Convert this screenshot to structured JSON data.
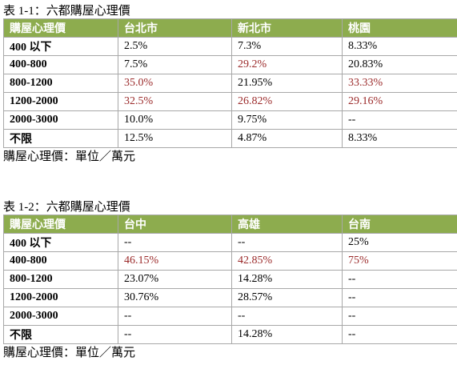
{
  "table1": {
    "caption": "表 1-1：六都購屋心理價",
    "headers": [
      "購屋心理價",
      "台北市",
      "新北市",
      "桃園"
    ],
    "rows": [
      {
        "label": "400 以下",
        "cells": [
          {
            "v": "2.5%",
            "red": false
          },
          {
            "v": "7.3%",
            "red": false
          },
          {
            "v": "8.33%",
            "red": false
          }
        ]
      },
      {
        "label": "400-800",
        "cells": [
          {
            "v": "7.5%",
            "red": false
          },
          {
            "v": "29.2%",
            "red": true
          },
          {
            "v": "20.83%",
            "red": false
          }
        ]
      },
      {
        "label": "800-1200",
        "cells": [
          {
            "v": "35.0%",
            "red": true
          },
          {
            "v": "21.95%",
            "red": false
          },
          {
            "v": "33.33%",
            "red": true
          }
        ]
      },
      {
        "label": "1200-2000",
        "cells": [
          {
            "v": "32.5%",
            "red": true
          },
          {
            "v": "26.82%",
            "red": true
          },
          {
            "v": "29.16%",
            "red": true
          }
        ]
      },
      {
        "label": "2000-3000",
        "cells": [
          {
            "v": "10.0%",
            "red": false
          },
          {
            "v": "9.75%",
            "red": false
          },
          {
            "v": "--",
            "red": false
          }
        ]
      },
      {
        "label": "不限",
        "cells": [
          {
            "v": "12.5%",
            "red": false
          },
          {
            "v": "4.87%",
            "red": false
          },
          {
            "v": "8.33%",
            "red": false
          }
        ]
      }
    ],
    "note": "購屋心理價：單位／萬元"
  },
  "table2": {
    "caption": "表 1-2：六都購屋心理價",
    "headers": [
      "購屋心理價",
      "台中",
      "高雄",
      "台南"
    ],
    "rows": [
      {
        "label": "400 以下",
        "cells": [
          {
            "v": "--",
            "red": false
          },
          {
            "v": "--",
            "red": false
          },
          {
            "v": "25%",
            "red": false
          }
        ]
      },
      {
        "label": "400-800",
        "cells": [
          {
            "v": "46.15%",
            "red": true
          },
          {
            "v": "42.85%",
            "red": true
          },
          {
            "v": "75%",
            "red": true
          }
        ]
      },
      {
        "label": "800-1200",
        "cells": [
          {
            "v": "23.07%",
            "red": false
          },
          {
            "v": "14.28%",
            "red": false
          },
          {
            "v": "--",
            "red": false
          }
        ]
      },
      {
        "label": "1200-2000",
        "cells": [
          {
            "v": "30.76%",
            "red": false
          },
          {
            "v": "28.57%",
            "red": false
          },
          {
            "v": "--",
            "red": false
          }
        ]
      },
      {
        "label": "2000-3000",
        "cells": [
          {
            "v": "--",
            "red": false
          },
          {
            "v": "--",
            "red": false
          },
          {
            "v": "--",
            "red": false
          }
        ]
      },
      {
        "label": "不限",
        "cells": [
          {
            "v": "--",
            "red": false
          },
          {
            "v": "14.28%",
            "red": false
          },
          {
            "v": "--",
            "red": false
          }
        ]
      }
    ],
    "note": "購屋心理價：單位／萬元"
  },
  "colors": {
    "header_bg": "#8dac4e",
    "header_text": "#ffffff",
    "highlight_text": "#9b2a2a",
    "border": "#a8a8a8"
  }
}
